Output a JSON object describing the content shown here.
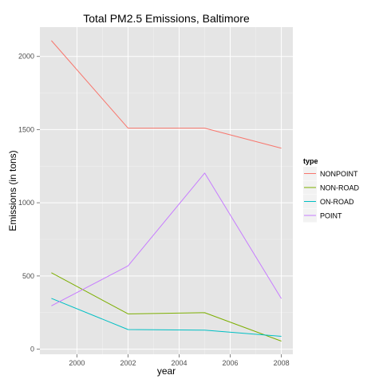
{
  "chart_data": {
    "type": "line",
    "title": "Total PM2.5 Emissions, Baltimore",
    "xlabel": "year",
    "ylabel": "Emissions (in tons)",
    "x": [
      1999,
      2002,
      2005,
      2008
    ],
    "xlim": [
      1998.55,
      2008.45
    ],
    "ylim": [
      -35,
      2200
    ],
    "x_ticks": [
      2000,
      2002,
      2004,
      2006,
      2008
    ],
    "x_tick_labels": [
      "2000",
      "2002",
      "2004",
      "2006",
      "2008"
    ],
    "y_ticks": [
      0,
      500,
      1000,
      1500,
      2000
    ],
    "y_tick_labels": [
      "0",
      "500",
      "1000",
      "1500",
      "2000"
    ],
    "grid": true,
    "legend": {
      "title": "type",
      "position": "right"
    },
    "series": [
      {
        "name": "NONPOINT",
        "color": "#F8766D",
        "values": [
          2108,
          1510,
          1510,
          1373
        ]
      },
      {
        "name": "NON-ROAD",
        "color": "#7CAE00",
        "values": [
          522,
          241,
          249,
          55
        ]
      },
      {
        "name": "ON-ROAD",
        "color": "#00BFC4",
        "values": [
          347,
          134,
          130,
          88
        ]
      },
      {
        "name": "POINT",
        "color": "#C77CFF",
        "values": [
          296,
          569,
          1203,
          345
        ]
      }
    ]
  }
}
